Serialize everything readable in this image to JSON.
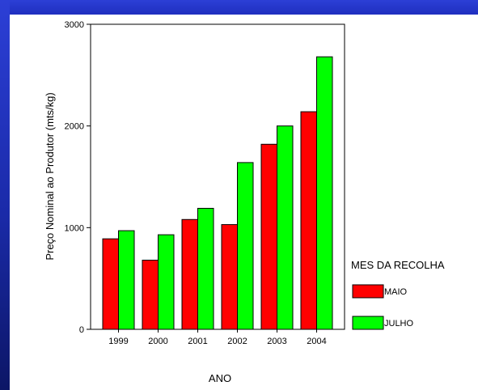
{
  "chart_data": {
    "type": "bar",
    "xlabel": "ANO",
    "ylabel": "Preço Nominal ao Produtor (mts/kg)",
    "categories": [
      "1999",
      "2000",
      "2001",
      "2002",
      "2003",
      "2004"
    ],
    "ylim": [
      0,
      3000
    ],
    "yticks": [
      "0",
      "1000",
      "2000",
      "3000"
    ],
    "grid": false,
    "legend": {
      "title": "MES DA RECOLHA",
      "position": "right"
    },
    "series": [
      {
        "name": "MAIO",
        "color": "#ff0000",
        "values": [
          890,
          680,
          1080,
          1030,
          1820,
          2140
        ]
      },
      {
        "name": "JULHO",
        "color": "#00ff00",
        "values": [
          970,
          930,
          1190,
          1640,
          2000,
          2680
        ]
      }
    ]
  }
}
